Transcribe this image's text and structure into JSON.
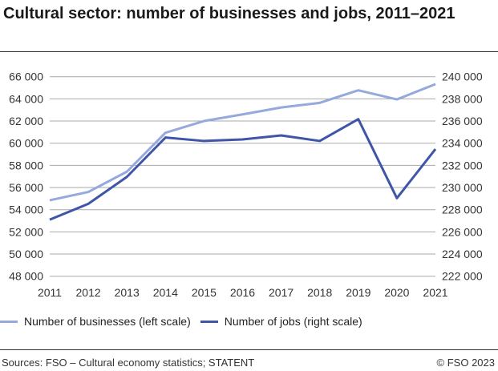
{
  "chart_data": {
    "type": "line",
    "title": "Cultural sector: number of businesses and jobs, 2011–2021",
    "x": [
      "2011",
      "2012",
      "2013",
      "2014",
      "2015",
      "2016",
      "2017",
      "2018",
      "2019",
      "2020",
      "2021"
    ],
    "series": [
      {
        "name": "Number of businesses (left scale)",
        "axis": "left",
        "color": "#95a9dc",
        "values": [
          54850,
          55600,
          57430,
          60940,
          62000,
          62600,
          63220,
          63640,
          64770,
          63950,
          65330
        ]
      },
      {
        "name": "Number of jobs (right scale)",
        "axis": "right",
        "color": "#3f55a8",
        "values": [
          227100,
          228530,
          230960,
          234510,
          234200,
          234340,
          234700,
          234200,
          236170,
          229040,
          233470
        ]
      }
    ],
    "ylim_left": [
      48000,
      66000
    ],
    "ylim_right": [
      222000,
      240000
    ],
    "yticks_left": [
      "48 000",
      "50 000",
      "52 000",
      "54 000",
      "56 000",
      "58 000",
      "60 000",
      "62 000",
      "64 000",
      "66 000"
    ],
    "yticks_right": [
      "222 000",
      "224 000",
      "226 000",
      "228 000",
      "230 000",
      "232 000",
      "234 000",
      "236 000",
      "238 000",
      "240 000"
    ],
    "grid": true,
    "legend_placement": "bottom"
  },
  "footer": {
    "sources": "Sources: FSO – Cultural economy statistics; STATENT",
    "copyright": "© FSO 2023"
  }
}
